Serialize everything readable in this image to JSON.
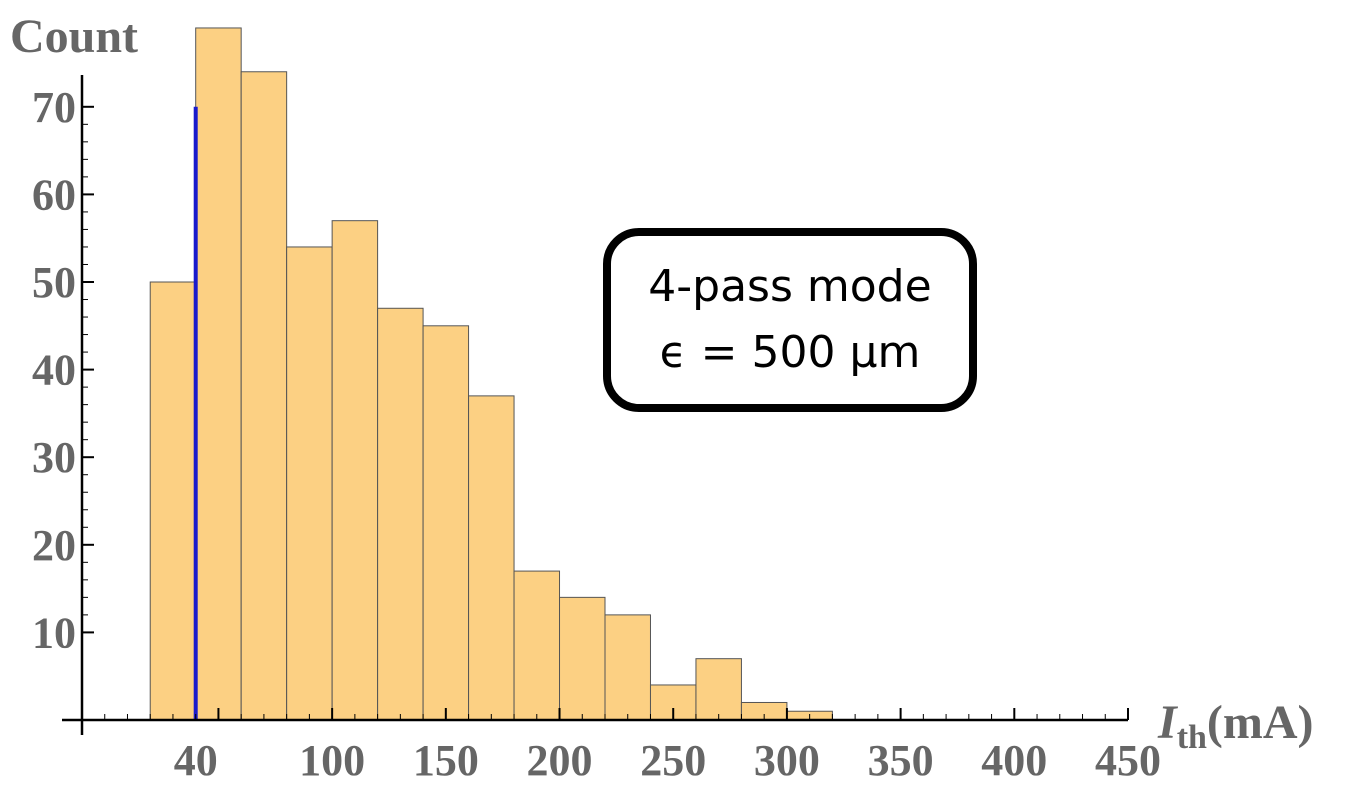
{
  "chart_data": {
    "type": "bar",
    "ylabel": "Count",
    "xlabel_var": "I",
    "xlabel_sub": "th",
    "xlabel_unit": "(mA)",
    "xlim": [
      -10,
      450
    ],
    "ylim": [
      0,
      75
    ],
    "bin_width": 20,
    "bins": [
      {
        "x0": 20,
        "x1": 40,
        "count": 50
      },
      {
        "x0": 40,
        "x1": 60,
        "count": 79
      },
      {
        "x0": 60,
        "x1": 80,
        "count": 74
      },
      {
        "x0": 80,
        "x1": 100,
        "count": 54
      },
      {
        "x0": 100,
        "x1": 120,
        "count": 57
      },
      {
        "x0": 120,
        "x1": 140,
        "count": 47
      },
      {
        "x0": 140,
        "x1": 160,
        "count": 45
      },
      {
        "x0": 160,
        "x1": 180,
        "count": 37
      },
      {
        "x0": 180,
        "x1": 200,
        "count": 17
      },
      {
        "x0": 200,
        "x1": 220,
        "count": 14
      },
      {
        "x0": 220,
        "x1": 240,
        "count": 12
      },
      {
        "x0": 240,
        "x1": 260,
        "count": 4
      },
      {
        "x0": 260,
        "x1": 280,
        "count": 7
      },
      {
        "x0": 280,
        "x1": 300,
        "count": 2
      },
      {
        "x0": 300,
        "x1": 320,
        "count": 1
      }
    ],
    "x_ticks": [
      40,
      100,
      150,
      200,
      250,
      300,
      350,
      400,
      450
    ],
    "x_tick_labels": [
      "40",
      "100",
      "150",
      "200",
      "250",
      "300",
      "350",
      "400",
      "450"
    ],
    "y_ticks": [
      10,
      20,
      30,
      40,
      50,
      60,
      70
    ],
    "y_tick_labels": [
      "10",
      "20",
      "30",
      "40",
      "50",
      "60",
      "70"
    ],
    "reference_line": {
      "x": 40,
      "y_top": 70,
      "color": "#1a1acc"
    },
    "bar_fill": "#fcd083",
    "bar_stroke": "#555555",
    "grid": false
  },
  "annotation": {
    "line1": "4-pass mode",
    "line2": "ϵ = 500 μm"
  }
}
